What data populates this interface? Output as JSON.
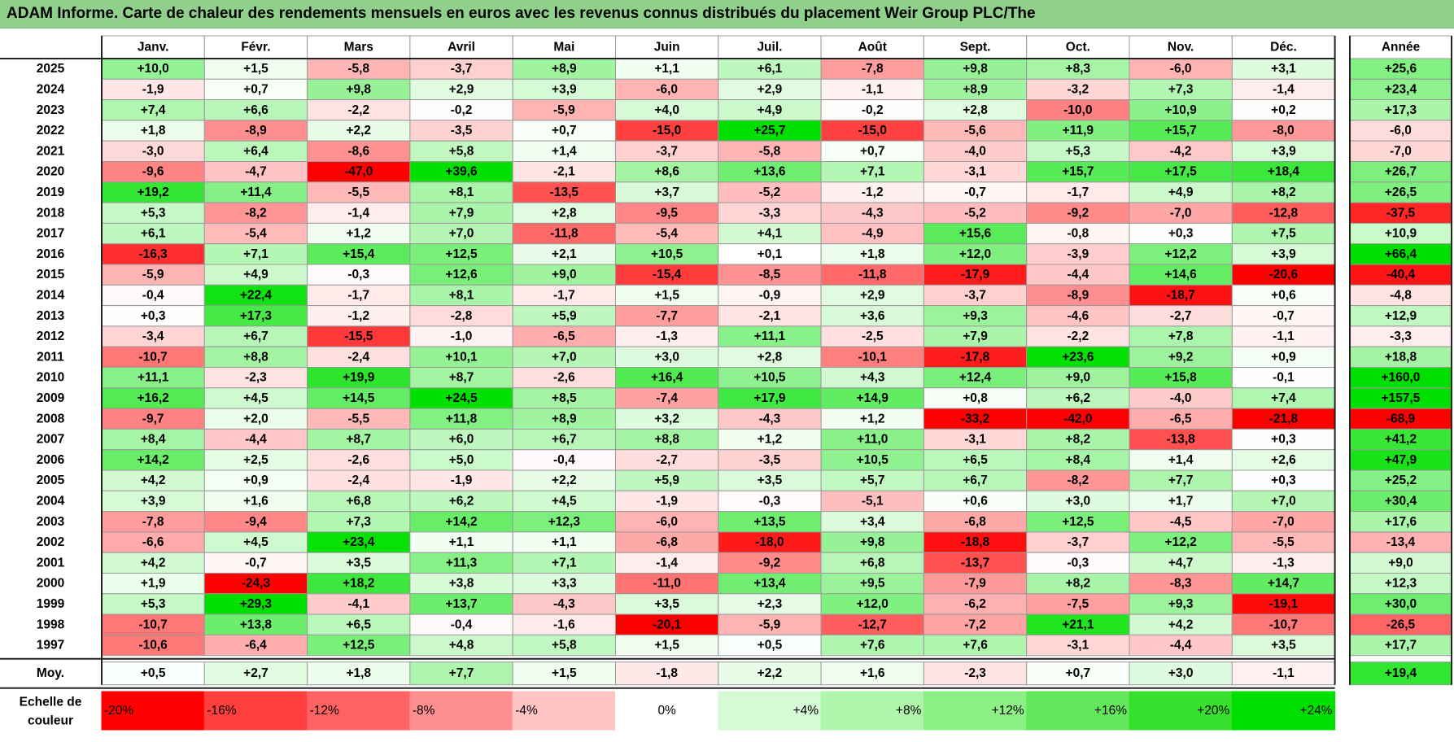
{
  "title": "ADAM Informe. Carte de chaleur des rendements mensuels en euros avec les revenus connus distribués du placement Weir Group PLC/The",
  "chart_data": {
    "type": "heatmap",
    "months": [
      "Janv.",
      "Févr.",
      "Mars",
      "Avril",
      "Mai",
      "Juin",
      "Juil.",
      "Août",
      "Sept.",
      "Oct.",
      "Nov.",
      "Déc."
    ],
    "year_header": "Année",
    "rows": [
      {
        "year": "2025",
        "values": [
          "+10,0",
          "+1,5",
          "-5,8",
          "-3,7",
          "+8,9",
          "+1,1",
          "+6,1",
          "-7,8",
          "+9,8",
          "+8,3",
          "-6,0",
          "+3,1"
        ],
        "total": "+25,6"
      },
      {
        "year": "2024",
        "values": [
          "-1,9",
          "+0,7",
          "+9,8",
          "+2,9",
          "+3,9",
          "-6,0",
          "+2,9",
          "-1,1",
          "+8,9",
          "-3,2",
          "+7,3",
          "-1,4"
        ],
        "total": "+23,4"
      },
      {
        "year": "2023",
        "values": [
          "+7,4",
          "+6,6",
          "-2,2",
          "-0,2",
          "-5,9",
          "+4,0",
          "+4,9",
          "-0,2",
          "+2,8",
          "-10,0",
          "+10,9",
          "+0,2"
        ],
        "total": "+17,3"
      },
      {
        "year": "2022",
        "values": [
          "+1,8",
          "-8,9",
          "+2,2",
          "-3,5",
          "+0,7",
          "-15,0",
          "+25,7",
          "-15,0",
          "-5,6",
          "+11,9",
          "+15,7",
          "-8,0"
        ],
        "total": "-6,0"
      },
      {
        "year": "2021",
        "values": [
          "-3,0",
          "+6,4",
          "-8,6",
          "+5,8",
          "+1,4",
          "-3,7",
          "-5,8",
          "+0,7",
          "-4,0",
          "+5,3",
          "-4,2",
          "+3,9"
        ],
        "total": "-7,0"
      },
      {
        "year": "2020",
        "values": [
          "-9,6",
          "-4,7",
          "-47,0",
          "+39,6",
          "-2,1",
          "+8,6",
          "+13,6",
          "+7,1",
          "-3,1",
          "+15,7",
          "+17,5",
          "+18,4"
        ],
        "total": "+26,7"
      },
      {
        "year": "2019",
        "values": [
          "+19,2",
          "+11,4",
          "-5,5",
          "+8,1",
          "-13,5",
          "+3,7",
          "-5,2",
          "-1,2",
          "-0,7",
          "-1,7",
          "+4,9",
          "+8,2"
        ],
        "total": "+26,5"
      },
      {
        "year": "2018",
        "values": [
          "+5,3",
          "-8,2",
          "-1,4",
          "+7,9",
          "+2,8",
          "-9,5",
          "-3,3",
          "-4,3",
          "-5,2",
          "-9,2",
          "-7,0",
          "-12,8"
        ],
        "total": "-37,5"
      },
      {
        "year": "2017",
        "values": [
          "+6,1",
          "-5,4",
          "+1,2",
          "+7,0",
          "-11,8",
          "-5,4",
          "+4,1",
          "-4,9",
          "+15,6",
          "-0,8",
          "+0,3",
          "+7,5"
        ],
        "total": "+10,9"
      },
      {
        "year": "2016",
        "values": [
          "-16,3",
          "+7,1",
          "+15,4",
          "+12,5",
          "+2,1",
          "+10,5",
          "+0,1",
          "+1,8",
          "+12,0",
          "-3,9",
          "+12,2",
          "+3,9"
        ],
        "total": "+66,4"
      },
      {
        "year": "2015",
        "values": [
          "-5,9",
          "+4,9",
          "-0,3",
          "+12,6",
          "+9,0",
          "-15,4",
          "-8,5",
          "-11,8",
          "-17,9",
          "-4,4",
          "+14,6",
          "-20,6"
        ],
        "total": "-40,4"
      },
      {
        "year": "2014",
        "values": [
          "-0,4",
          "+22,4",
          "-1,7",
          "+8,1",
          "-1,7",
          "+1,5",
          "-0,9",
          "+2,9",
          "-3,7",
          "-8,9",
          "-18,7",
          "+0,6"
        ],
        "total": "-4,8"
      },
      {
        "year": "2013",
        "values": [
          "+0,3",
          "+17,3",
          "-1,2",
          "-2,8",
          "+5,9",
          "-7,7",
          "-2,1",
          "+3,6",
          "+9,3",
          "-4,6",
          "-2,7",
          "-0,7"
        ],
        "total": "+12,9"
      },
      {
        "year": "2012",
        "values": [
          "-3,4",
          "+6,7",
          "-15,5",
          "-1,0",
          "-6,5",
          "-1,3",
          "+11,1",
          "-2,5",
          "+7,9",
          "-2,2",
          "+7,8",
          "-1,1"
        ],
        "total": "-3,3"
      },
      {
        "year": "2011",
        "values": [
          "-10,7",
          "+8,8",
          "-2,4",
          "+10,1",
          "+7,0",
          "+3,0",
          "+2,8",
          "-10,1",
          "-17,8",
          "+23,6",
          "+9,2",
          "+0,9"
        ],
        "total": "+18,8"
      },
      {
        "year": "2010",
        "values": [
          "+11,1",
          "-2,3",
          "+19,9",
          "+8,7",
          "-2,6",
          "+16,4",
          "+10,5",
          "+4,3",
          "+12,4",
          "+9,0",
          "+15,8",
          "-0,1"
        ],
        "total": "+160,0"
      },
      {
        "year": "2009",
        "values": [
          "+16,2",
          "+4,5",
          "+14,5",
          "+24,5",
          "+8,5",
          "-7,4",
          "+17,9",
          "+14,9",
          "+0,8",
          "+6,2",
          "-4,0",
          "+7,4"
        ],
        "total": "+157,5"
      },
      {
        "year": "2008",
        "values": [
          "-9,7",
          "+2,0",
          "-5,5",
          "+11,8",
          "+8,9",
          "+3,2",
          "-4,3",
          "+1,2",
          "-33,2",
          "-42,0",
          "-6,5",
          "-21,8"
        ],
        "total": "-68,9"
      },
      {
        "year": "2007",
        "values": [
          "+8,4",
          "-4,4",
          "+8,7",
          "+6,0",
          "+6,7",
          "+8,8",
          "+1,2",
          "+11,0",
          "-3,1",
          "+8,2",
          "-13,8",
          "+0,3"
        ],
        "total": "+41,2"
      },
      {
        "year": "2006",
        "values": [
          "+14,2",
          "+2,5",
          "-2,6",
          "+5,0",
          "-0,4",
          "-2,7",
          "-3,5",
          "+10,5",
          "+6,5",
          "+8,4",
          "+1,4",
          "+2,6"
        ],
        "total": "+47,9"
      },
      {
        "year": "2005",
        "values": [
          "+4,2",
          "+0,9",
          "-2,4",
          "-1,9",
          "+2,2",
          "+5,9",
          "+3,5",
          "+5,7",
          "+6,7",
          "-8,2",
          "+7,7",
          "+0,3"
        ],
        "total": "+25,2"
      },
      {
        "year": "2004",
        "values": [
          "+3,9",
          "+1,6",
          "+6,8",
          "+6,2",
          "+4,5",
          "-1,9",
          "-0,3",
          "-5,1",
          "+0,6",
          "+3,0",
          "+1,7",
          "+7,0"
        ],
        "total": "+30,4"
      },
      {
        "year": "2003",
        "values": [
          "-7,8",
          "-9,4",
          "+7,3",
          "+14,2",
          "+12,3",
          "-6,0",
          "+13,5",
          "+3,4",
          "-6,8",
          "+12,5",
          "-4,5",
          "-7,0"
        ],
        "total": "+17,6"
      },
      {
        "year": "2002",
        "values": [
          "-6,6",
          "+4,5",
          "+23,4",
          "+1,1",
          "+1,1",
          "-6,8",
          "-18,0",
          "+9,8",
          "-18,8",
          "-3,7",
          "+12,2",
          "-5,5"
        ],
        "total": "-13,4"
      },
      {
        "year": "2001",
        "values": [
          "+4,2",
          "-0,7",
          "+3,5",
          "+11,3",
          "+7,1",
          "-1,4",
          "-9,2",
          "+6,8",
          "-13,7",
          "-0,3",
          "+4,7",
          "-1,3"
        ],
        "total": "+9,0"
      },
      {
        "year": "2000",
        "values": [
          "+1,9",
          "-24,3",
          "+18,2",
          "+3,8",
          "+3,3",
          "-11,0",
          "+13,4",
          "+9,5",
          "-7,9",
          "+8,2",
          "-8,3",
          "+14,7"
        ],
        "total": "+12,3"
      },
      {
        "year": "1999",
        "values": [
          "+5,3",
          "+29,3",
          "-4,1",
          "+13,7",
          "-4,3",
          "+3,5",
          "+2,3",
          "+12,0",
          "-6,2",
          "-7,5",
          "+9,3",
          "-19,1"
        ],
        "total": "+30,0"
      },
      {
        "year": "1998",
        "values": [
          "-10,7",
          "+13,8",
          "+6,5",
          "-0,4",
          "-1,6",
          "-20,1",
          "-5,9",
          "-12,7",
          "-7,2",
          "+21,1",
          "+4,2",
          "-10,7"
        ],
        "total": "-26,5"
      },
      {
        "year": "1997",
        "values": [
          "-10,6",
          "-6,4",
          "+12,5",
          "+4,8",
          "+5,8",
          "+1,5",
          "+0,5",
          "+7,6",
          "+7,6",
          "-3,1",
          "-4,4",
          "+3,5"
        ],
        "total": "+17,7"
      }
    ],
    "average": {
      "label": "Moy.",
      "values": [
        "+0,5",
        "+2,7",
        "+1,8",
        "+7,7",
        "+1,5",
        "-1,8",
        "+2,2",
        "+1,6",
        "-2,3",
        "+0,7",
        "+3,0",
        "-1,1"
      ],
      "total": "+19,4"
    },
    "scale": {
      "label_line1": "Echelle de",
      "label_line2": "couleur",
      "steps": [
        {
          "text": "-20%",
          "color": "#ff0000"
        },
        {
          "text": "-16%",
          "color": "#ff3e3e"
        },
        {
          "text": "-12%",
          "color": "#ff6262"
        },
        {
          "text": "-8%",
          "color": "#ff8e8e"
        },
        {
          "text": "-4%",
          "color": "#ffc4c4"
        },
        {
          "text": "0%",
          "color": "#ffffff"
        },
        {
          "text": "+4%",
          "color": "#d6fad6"
        },
        {
          "text": "+8%",
          "color": "#b0f5ac"
        },
        {
          "text": "+12%",
          "color": "#8cf084"
        },
        {
          "text": "+16%",
          "color": "#62e85a"
        },
        {
          "text": "+20%",
          "color": "#36e02c"
        },
        {
          "text": "+24%",
          "color": "#00e000"
        }
      ]
    },
    "colors": {
      "title_bg": "#8fd18a",
      "border": "#9a9a9a"
    }
  }
}
